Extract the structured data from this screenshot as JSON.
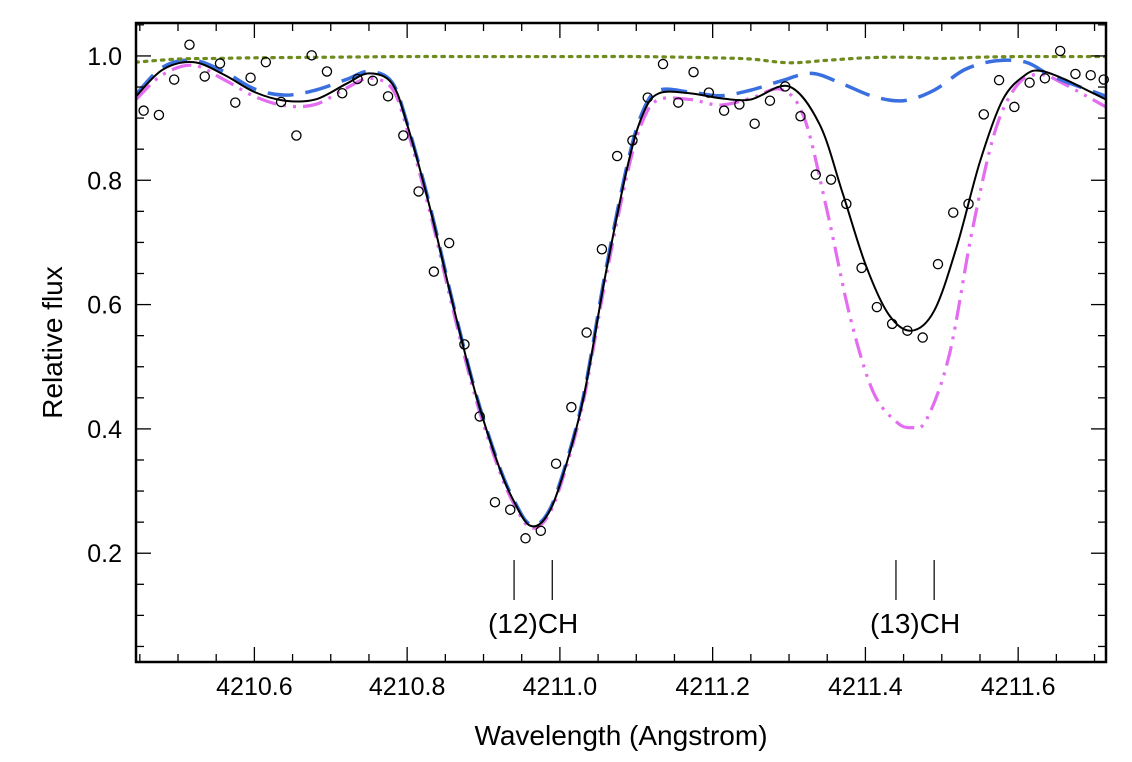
{
  "chart_data": {
    "type": "line",
    "xlabel": "Wavelength (Angstrom)",
    "ylabel": "Relative flux",
    "xlim": [
      4210.445,
      4211.715
    ],
    "ylim": [
      0.025,
      1.053
    ],
    "x_ticks": [
      4210.6,
      4210.8,
      4211.0,
      4211.2,
      4211.4,
      4211.6
    ],
    "x_tick_labels": [
      "4210.6",
      "4210.8",
      "4211.0",
      "4211.2",
      "4211.4",
      "4211.6"
    ],
    "y_ticks": [
      0.2,
      0.4,
      0.6,
      0.8,
      1.0
    ],
    "y_tick_labels": [
      "0.2",
      "0.4",
      "0.6",
      "0.8",
      "1.0"
    ],
    "grid": false,
    "legend": "none",
    "series": [
      {
        "style": "solid",
        "color": "#000000",
        "x": [
          4210.445,
          4210.48,
          4210.52,
          4210.56,
          4210.6,
          4210.64,
          4210.68,
          4210.72,
          4210.75,
          4210.78,
          4210.8,
          4210.83,
          4210.86,
          4210.89,
          4210.92,
          4210.94,
          4210.96,
          4210.98,
          4211.0,
          4211.03,
          4211.06,
          4211.09,
          4211.11,
          4211.13,
          4211.17,
          4211.21,
          4211.25,
          4211.3,
          4211.34,
          4211.37,
          4211.4,
          4211.43,
          4211.46,
          4211.49,
          4211.52,
          4211.55,
          4211.58,
          4211.61,
          4211.63,
          4211.66,
          4211.69,
          4211.715
        ],
        "y": [
          0.935,
          0.978,
          0.99,
          0.97,
          0.942,
          0.928,
          0.93,
          0.955,
          0.972,
          0.956,
          0.89,
          0.755,
          0.6,
          0.455,
          0.34,
          0.283,
          0.245,
          0.255,
          0.31,
          0.445,
          0.65,
          0.83,
          0.91,
          0.94,
          0.94,
          0.932,
          0.93,
          0.951,
          0.89,
          0.78,
          0.665,
          0.585,
          0.558,
          0.59,
          0.695,
          0.83,
          0.93,
          0.97,
          0.976,
          0.963,
          0.945,
          0.93
        ]
      },
      {
        "style": "dash-dot-dot",
        "color": "#e36cf0",
        "x": [
          4210.445,
          4210.48,
          4210.52,
          4210.56,
          4210.6,
          4210.64,
          4210.68,
          4210.72,
          4210.75,
          4210.78,
          4210.8,
          4210.83,
          4210.86,
          4210.89,
          4210.92,
          4210.94,
          4210.96,
          4210.98,
          4211.0,
          4211.03,
          4211.06,
          4211.09,
          4211.11,
          4211.13,
          4211.17,
          4211.21,
          4211.25,
          4211.29,
          4211.32,
          4211.35,
          4211.38,
          4211.41,
          4211.44,
          4211.46,
          4211.48,
          4211.51,
          4211.54,
          4211.57,
          4211.6,
          4211.63,
          4211.66,
          4211.69,
          4211.715
        ],
        "y": [
          0.93,
          0.97,
          0.985,
          0.962,
          0.935,
          0.92,
          0.922,
          0.948,
          0.964,
          0.948,
          0.882,
          0.748,
          0.592,
          0.448,
          0.335,
          0.279,
          0.242,
          0.252,
          0.306,
          0.44,
          0.642,
          0.82,
          0.9,
          0.93,
          0.93,
          0.921,
          0.932,
          0.946,
          0.9,
          0.75,
          0.58,
          0.46,
          0.412,
          0.402,
          0.415,
          0.52,
          0.72,
          0.88,
          0.955,
          0.97,
          0.955,
          0.935,
          0.918
        ]
      },
      {
        "style": "dashed",
        "color": "#3a6fe0",
        "x": [
          4210.445,
          4210.48,
          4210.52,
          4210.56,
          4210.6,
          4210.64,
          4210.68,
          4210.72,
          4210.75,
          4210.78,
          4210.8,
          4210.83,
          4210.86,
          4210.89,
          4210.92,
          4210.94,
          4210.96,
          4210.98,
          4211.0,
          4211.03,
          4211.06,
          4211.09,
          4211.11,
          4211.13,
          4211.17,
          4211.21,
          4211.25,
          4211.29,
          4211.33,
          4211.37,
          4211.41,
          4211.45,
          4211.49,
          4211.53,
          4211.57,
          4211.61,
          4211.64,
          4211.67,
          4211.7,
          4211.715
        ],
        "y": [
          0.938,
          0.982,
          0.993,
          0.975,
          0.947,
          0.937,
          0.945,
          0.962,
          0.975,
          0.958,
          0.892,
          0.758,
          0.602,
          0.457,
          0.342,
          0.285,
          0.247,
          0.257,
          0.313,
          0.448,
          0.655,
          0.835,
          0.915,
          0.945,
          0.942,
          0.936,
          0.945,
          0.96,
          0.972,
          0.955,
          0.935,
          0.928,
          0.945,
          0.978,
          0.992,
          0.99,
          0.97,
          0.955,
          0.942,
          0.935
        ]
      },
      {
        "style": "dotted",
        "color": "#6e8b1e",
        "x": [
          4210.445,
          4210.5,
          4210.55,
          4210.6,
          4210.7,
          4210.8,
          4210.9,
          4211.0,
          4211.1,
          4211.2,
          4211.25,
          4211.3,
          4211.35,
          4211.4,
          4211.45,
          4211.5,
          4211.55,
          4211.6,
          4211.65,
          4211.715
        ],
        "y": [
          0.99,
          0.995,
          0.996,
          0.997,
          0.998,
          0.999,
          0.999,
          0.999,
          0.999,
          0.997,
          0.995,
          0.989,
          0.993,
          0.997,
          0.998,
          0.996,
          0.998,
          0.999,
          0.999,
          0.999
        ]
      }
    ],
    "observed_points": {
      "style": "open-circle",
      "x": [
        4210.455,
        4210.475,
        4210.495,
        4210.515,
        4210.535,
        4210.555,
        4210.575,
        4210.595,
        4210.615,
        4210.635,
        4210.655,
        4210.675,
        4210.695,
        4210.715,
        4210.735,
        4210.755,
        4210.775,
        4210.795,
        4210.815,
        4210.835,
        4210.855,
        4210.875,
        4210.895,
        4210.915,
        4210.935,
        4210.955,
        4210.975,
        4210.995,
        4211.015,
        4211.035,
        4211.055,
        4211.075,
        4211.095,
        4211.115,
        4211.135,
        4211.155,
        4211.175,
        4211.195,
        4211.215,
        4211.235,
        4211.255,
        4211.275,
        4211.295,
        4211.315,
        4211.335,
        4211.355,
        4211.375,
        4211.395,
        4211.415,
        4211.435,
        4211.455,
        4211.475,
        4211.495,
        4211.515,
        4211.535,
        4211.555,
        4211.575,
        4211.595,
        4211.615,
        4211.635,
        4211.655,
        4211.675,
        4211.695,
        4211.712
      ],
      "y": [
        0.912,
        0.905,
        0.962,
        1.018,
        0.967,
        0.988,
        0.925,
        0.965,
        0.99,
        0.926,
        0.872,
        1.001,
        0.975,
        0.94,
        0.963,
        0.96,
        0.935,
        0.872,
        0.782,
        0.653,
        0.699,
        0.536,
        0.42,
        0.282,
        0.27,
        0.224,
        0.236,
        0.344,
        0.435,
        0.555,
        0.689,
        0.839,
        0.864,
        0.933,
        0.987,
        0.925,
        0.974,
        0.941,
        0.912,
        0.922,
        0.891,
        0.928,
        0.951,
        0.903,
        0.809,
        0.801,
        0.762,
        0.659,
        0.596,
        0.569,
        0.558,
        0.547,
        0.665,
        0.748,
        0.762,
        0.906,
        0.961,
        0.918,
        0.957,
        0.964,
        1.008,
        0.971,
        0.969,
        0.962
      ]
    },
    "annotations": [
      {
        "label": "(12)CH",
        "line_x": [
          4210.94,
          4210.99
        ],
        "label_x": 4210.965
      },
      {
        "label": "(13)CH",
        "line_x": [
          4211.44,
          4211.49
        ],
        "label_x": 4211.465
      }
    ]
  }
}
